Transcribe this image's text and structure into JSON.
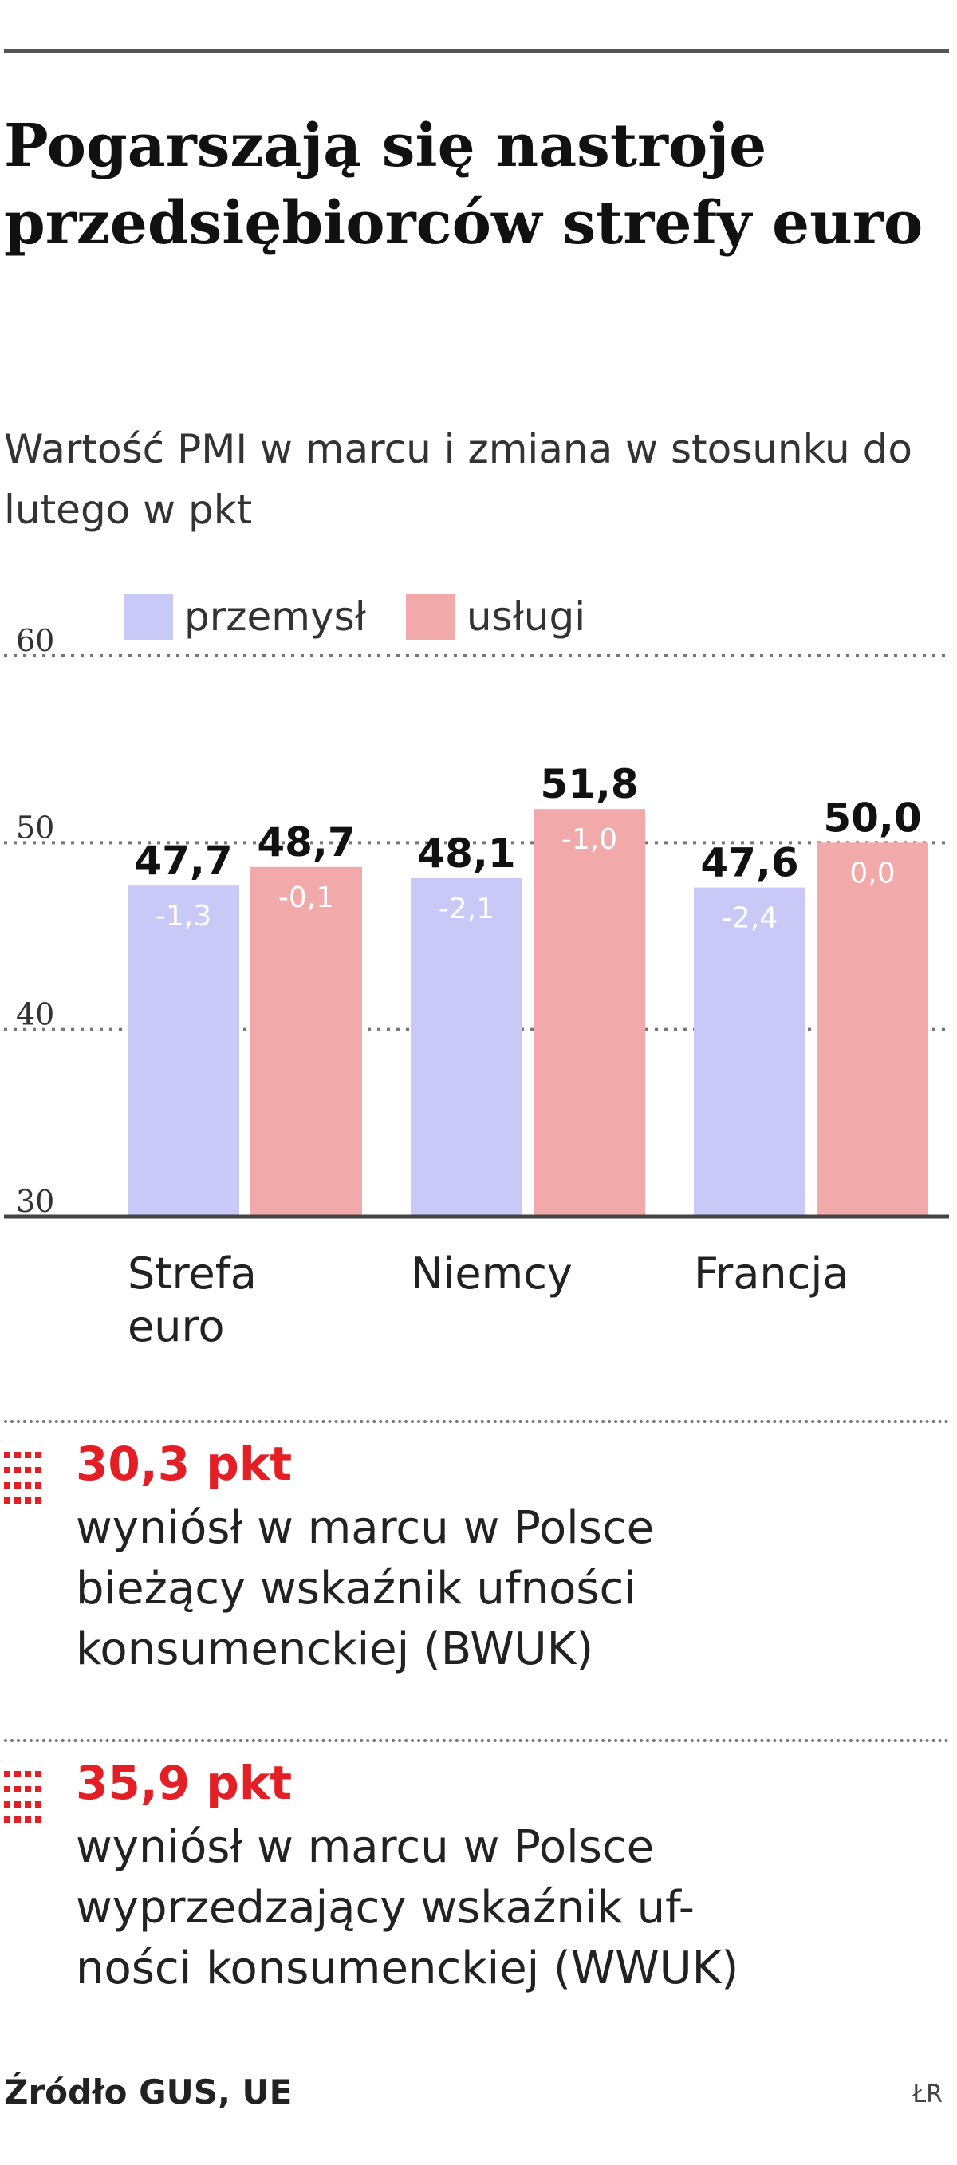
{
  "title": "Pogarszają się nastroje przedsiębiorców strefy euro",
  "subtitle": "Wartość PMI w marcu i zmiana w stosunku do lutego w pkt",
  "colors": {
    "przemysl": "#c9c9f7",
    "uslugi": "#f2a9aa",
    "accent": "#e31e24"
  },
  "chart_data": {
    "type": "bar",
    "categories": [
      "Strefa euro",
      "Niemcy",
      "Francja"
    ],
    "series": [
      {
        "name": "przemysł",
        "values": [
          47.7,
          48.1,
          47.6
        ],
        "value_labels": [
          "47,7",
          "48,1",
          "47,6"
        ],
        "change_labels": [
          "-1,3",
          "-2,1",
          "-2,4"
        ]
      },
      {
        "name": "usługi",
        "values": [
          48.7,
          51.8,
          50.0
        ],
        "value_labels": [
          "48,7",
          "51,8",
          "50,0"
        ],
        "change_labels": [
          "-0,1",
          "-1,0",
          "0,0"
        ]
      }
    ],
    "category_labels": [
      [
        "Strefa",
        "euro"
      ],
      [
        "Niemcy"
      ],
      [
        "Francja"
      ]
    ],
    "yticks": [
      {
        "value": 30,
        "label": "30"
      },
      {
        "value": 40,
        "label": "40"
      },
      {
        "value": 50,
        "label": "50"
      },
      {
        "value": 60,
        "label": "60"
      }
    ],
    "ylim": [
      30,
      60
    ],
    "grid": true,
    "legend": "top-left"
  },
  "stats": [
    {
      "value": "30,3 pkt",
      "lines": [
        "wyniósł w marcu w Polsce",
        "bieżący wskaźnik ufności",
        "konsumenckiej (BWUK)"
      ]
    },
    {
      "value": "35,9 pkt",
      "lines": [
        "wyniósł w marcu w Polsce",
        "wyprzedzający wskaźnik uf-",
        "ności konsumenckiej (WWUK)"
      ]
    }
  ],
  "source": "Źródło GUS, UE",
  "credit": "ŁR"
}
